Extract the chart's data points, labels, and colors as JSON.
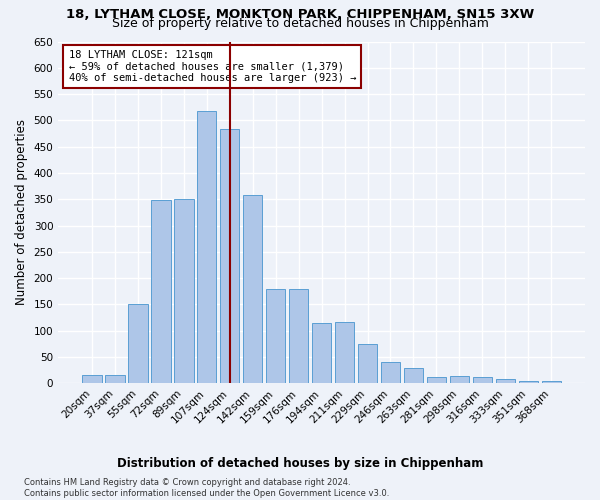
{
  "title_line1": "18, LYTHAM CLOSE, MONKTON PARK, CHIPPENHAM, SN15 3XW",
  "title_line2": "Size of property relative to detached houses in Chippenham",
  "xlabel": "Distribution of detached houses by size in Chippenham",
  "ylabel": "Number of detached properties",
  "categories": [
    "20sqm",
    "37sqm",
    "55sqm",
    "72sqm",
    "89sqm",
    "107sqm",
    "124sqm",
    "142sqm",
    "159sqm",
    "176sqm",
    "194sqm",
    "211sqm",
    "229sqm",
    "246sqm",
    "263sqm",
    "281sqm",
    "298sqm",
    "316sqm",
    "333sqm",
    "351sqm",
    "368sqm"
  ],
  "values": [
    15,
    15,
    150,
    348,
    350,
    517,
    483,
    358,
    180,
    180,
    115,
    117,
    75,
    40,
    30,
    12,
    13,
    12,
    8,
    5,
    5
  ],
  "bar_color": "#aec6e8",
  "bar_edge_color": "#5a9fd4",
  "vline_x_index": 6,
  "vline_color": "#8b0000",
  "annotation_text": "18 LYTHAM CLOSE: 121sqm\n← 59% of detached houses are smaller (1,379)\n40% of semi-detached houses are larger (923) →",
  "annotation_box_color": "#ffffff",
  "annotation_box_edge": "#8b0000",
  "ylim": [
    0,
    650
  ],
  "yticks": [
    0,
    50,
    100,
    150,
    200,
    250,
    300,
    350,
    400,
    450,
    500,
    550,
    600,
    650
  ],
  "footnote": "Contains HM Land Registry data © Crown copyright and database right 2024.\nContains public sector information licensed under the Open Government Licence v3.0.",
  "bg_color": "#eef2f9",
  "grid_color": "#ffffff",
  "title_fontsize": 9.5,
  "subtitle_fontsize": 9,
  "label_fontsize": 8.5,
  "tick_fontsize": 7.5,
  "annot_fontsize": 7.5
}
